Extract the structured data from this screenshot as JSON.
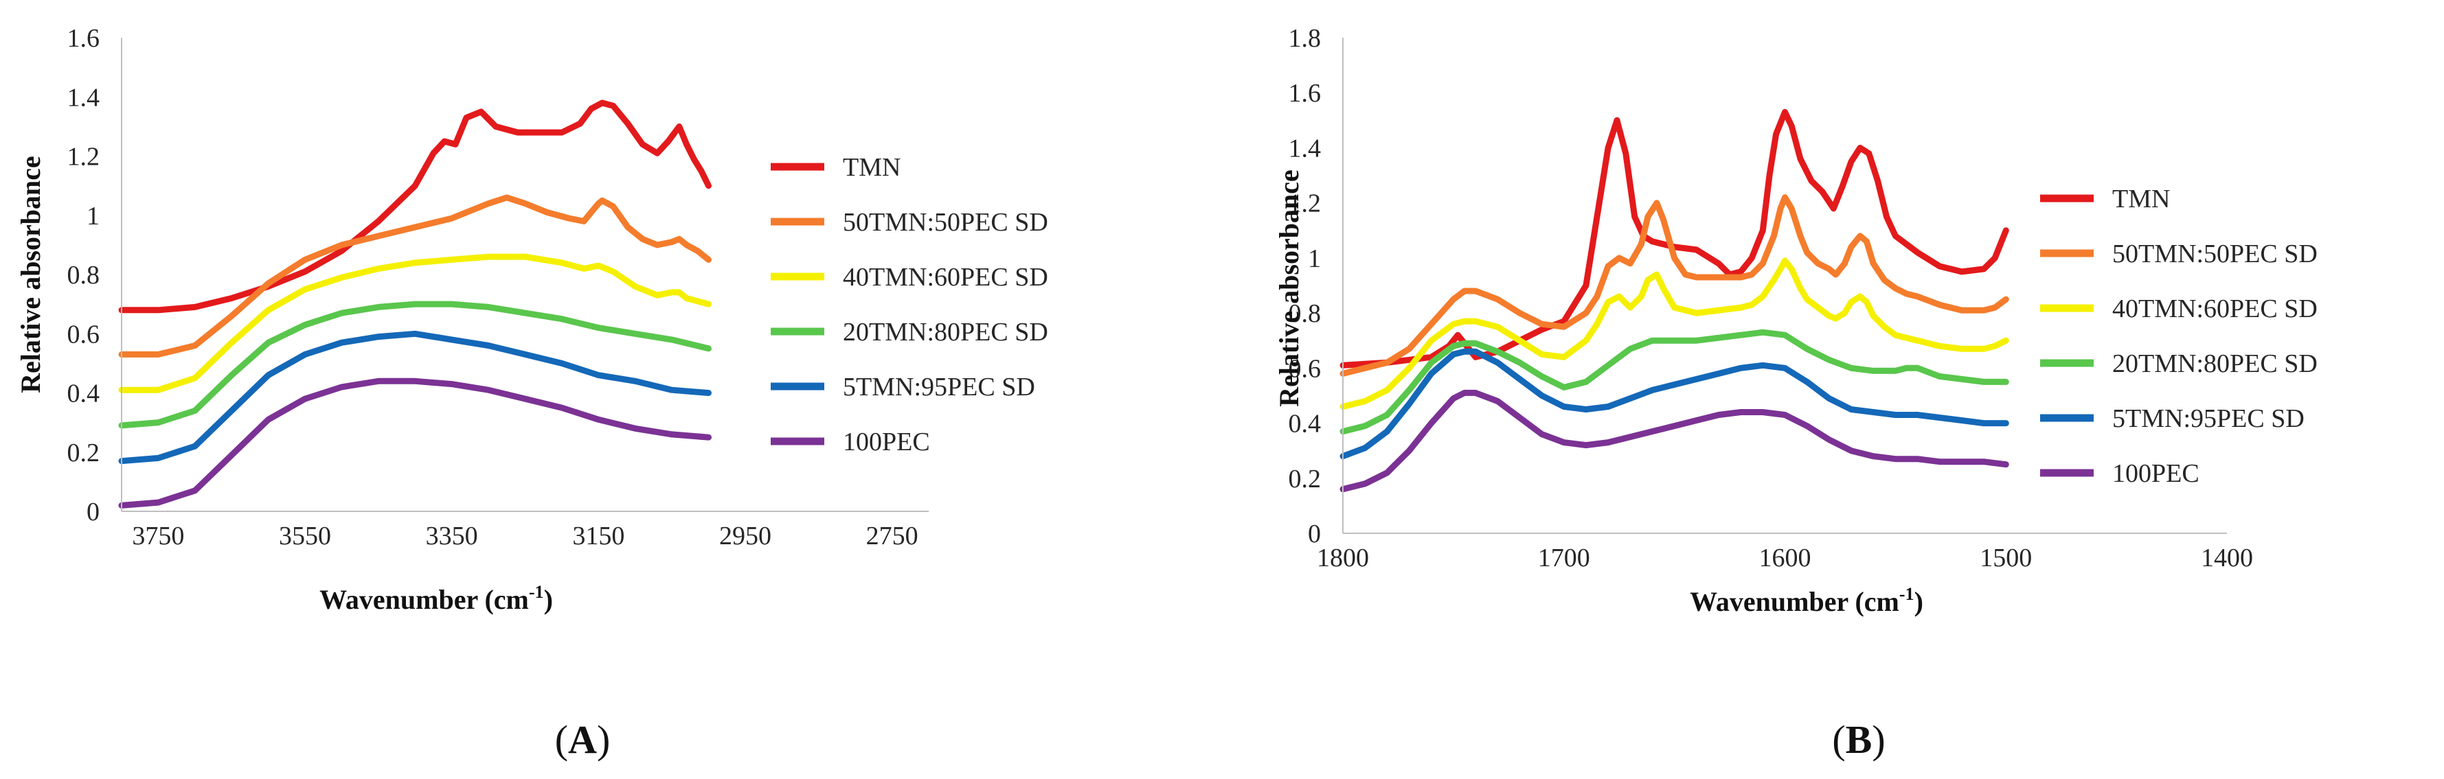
{
  "figure": {
    "panel_labels": [
      {
        "open": "(",
        "letter": "A",
        "close": ")"
      },
      {
        "open": "(",
        "letter": "B",
        "close": ")"
      }
    ]
  },
  "chart_data": [
    {
      "type": "line",
      "panel": "A",
      "title": "",
      "xlabel": "Wavenumber (cm-1)",
      "xlabel_base": "Wavenumber (cm",
      "xlabel_sup": "-1",
      "xlabel_end": ")",
      "ylabel": "Relative absorbance",
      "xlim": [
        3800,
        2700
      ],
      "x_reversed": true,
      "ylim": [
        0,
        1.6
      ],
      "xticks": [
        3750,
        3550,
        3350,
        3150,
        2950,
        2750
      ],
      "xtick_labels": [
        "3750",
        "3550",
        "3350",
        "3150",
        "2950",
        "2750"
      ],
      "yticks": [
        0,
        0.2,
        0.4,
        0.6,
        0.8,
        1,
        1.2,
        1.4,
        1.6
      ],
      "ytick_labels": [
        "0",
        "0.2",
        "0.4",
        "0.6",
        "0.8",
        "1",
        "1.2",
        "1.4",
        "1.6"
      ],
      "grid": false,
      "legend_position": "right",
      "series": [
        {
          "name": "TMN",
          "color": "#e31a1c",
          "x": [
            3800,
            3750,
            3700,
            3650,
            3600,
            3550,
            3500,
            3450,
            3400,
            3375,
            3360,
            3345,
            3330,
            3310,
            3290,
            3260,
            3230,
            3200,
            3175,
            3160,
            3145,
            3130,
            3110,
            3090,
            3070,
            3055,
            3040,
            3030,
            3020,
            3010,
            3000
          ],
          "y": [
            0.68,
            0.68,
            0.69,
            0.72,
            0.76,
            0.81,
            0.88,
            0.98,
            1.1,
            1.21,
            1.25,
            1.24,
            1.33,
            1.35,
            1.3,
            1.28,
            1.28,
            1.28,
            1.31,
            1.36,
            1.38,
            1.37,
            1.31,
            1.24,
            1.21,
            1.25,
            1.3,
            1.24,
            1.19,
            1.15,
            1.1
          ]
        },
        {
          "name": "50TMN:50PEC SD",
          "color": "#f47c2c",
          "x": [
            3800,
            3750,
            3700,
            3650,
            3600,
            3550,
            3500,
            3450,
            3400,
            3350,
            3300,
            3275,
            3250,
            3220,
            3190,
            3170,
            3160,
            3150,
            3145,
            3130,
            3110,
            3090,
            3070,
            3050,
            3040,
            3030,
            3015,
            3000
          ],
          "y": [
            0.53,
            0.53,
            0.56,
            0.66,
            0.77,
            0.85,
            0.9,
            0.93,
            0.96,
            0.99,
            1.04,
            1.06,
            1.04,
            1.01,
            0.99,
            0.98,
            1.01,
            1.04,
            1.05,
            1.03,
            0.96,
            0.92,
            0.9,
            0.91,
            0.92,
            0.9,
            0.88,
            0.85
          ]
        },
        {
          "name": "40TMN:60PEC SD",
          "color": "#f5f000",
          "x": [
            3800,
            3750,
            3700,
            3650,
            3600,
            3550,
            3500,
            3450,
            3400,
            3350,
            3300,
            3250,
            3200,
            3170,
            3150,
            3130,
            3100,
            3070,
            3050,
            3040,
            3030,
            3015,
            3000
          ],
          "y": [
            0.41,
            0.41,
            0.45,
            0.57,
            0.68,
            0.75,
            0.79,
            0.82,
            0.84,
            0.85,
            0.86,
            0.86,
            0.84,
            0.82,
            0.83,
            0.81,
            0.76,
            0.73,
            0.74,
            0.74,
            0.72,
            0.71,
            0.7
          ]
        },
        {
          "name": "20TMN:80PEC SD",
          "color": "#59c64c",
          "x": [
            3800,
            3750,
            3700,
            3650,
            3600,
            3550,
            3500,
            3450,
            3400,
            3350,
            3300,
            3250,
            3200,
            3150,
            3100,
            3050,
            3000
          ],
          "y": [
            0.29,
            0.3,
            0.34,
            0.46,
            0.57,
            0.63,
            0.67,
            0.69,
            0.7,
            0.7,
            0.69,
            0.67,
            0.65,
            0.62,
            0.6,
            0.58,
            0.55
          ]
        },
        {
          "name": "5TMN:95PEC SD",
          "color": "#1468b8",
          "x": [
            3800,
            3750,
            3700,
            3650,
            3600,
            3550,
            3500,
            3450,
            3400,
            3350,
            3300,
            3250,
            3200,
            3150,
            3100,
            3050,
            3000
          ],
          "y": [
            0.17,
            0.18,
            0.22,
            0.34,
            0.46,
            0.53,
            0.57,
            0.59,
            0.6,
            0.58,
            0.56,
            0.53,
            0.5,
            0.46,
            0.44,
            0.41,
            0.4
          ]
        },
        {
          "name": "100PEC",
          "color": "#7b3294",
          "x": [
            3800,
            3750,
            3700,
            3650,
            3600,
            3550,
            3500,
            3450,
            3400,
            3350,
            3300,
            3250,
            3200,
            3150,
            3100,
            3050,
            3000
          ],
          "y": [
            0.02,
            0.03,
            0.07,
            0.19,
            0.31,
            0.38,
            0.42,
            0.44,
            0.44,
            0.43,
            0.41,
            0.38,
            0.35,
            0.31,
            0.28,
            0.26,
            0.25
          ]
        }
      ]
    },
    {
      "type": "line",
      "panel": "B",
      "title": "",
      "xlabel": "Wavenumber (cm-1)",
      "xlabel_base": "Wavenumber (cm",
      "xlabel_sup": "-1",
      "xlabel_end": ")",
      "ylabel": "Relative absorbance",
      "xlim": [
        1800,
        1400
      ],
      "x_reversed": true,
      "ylim": [
        0,
        1.8
      ],
      "xticks": [
        1800,
        1700,
        1600,
        1500,
        1400
      ],
      "xtick_labels": [
        "1800",
        "1700",
        "1600",
        "1500",
        "1400"
      ],
      "yticks": [
        0,
        0.2,
        0.4,
        0.6,
        0.8,
        1,
        1.2,
        1.4,
        1.6,
        1.8
      ],
      "ytick_labels": [
        "0",
        "0.2",
        "0.4",
        "0.6",
        "0.8",
        "1",
        "1.2",
        "1.4",
        "1.6",
        "1.8"
      ],
      "grid": false,
      "legend_position": "right",
      "series": [
        {
          "name": "TMN",
          "color": "#e31a1c",
          "x": [
            1800,
            1780,
            1760,
            1752,
            1748,
            1744,
            1740,
            1730,
            1720,
            1710,
            1700,
            1690,
            1685,
            1680,
            1676,
            1672,
            1668,
            1664,
            1660,
            1655,
            1650,
            1640,
            1630,
            1625,
            1620,
            1615,
            1610,
            1607,
            1604,
            1600,
            1597,
            1593,
            1588,
            1583,
            1578,
            1574,
            1570,
            1566,
            1562,
            1558,
            1554,
            1550,
            1540,
            1530,
            1520,
            1510,
            1505,
            1500
          ],
          "y": [
            0.61,
            0.62,
            0.64,
            0.68,
            0.72,
            0.68,
            0.64,
            0.66,
            0.7,
            0.74,
            0.77,
            0.9,
            1.15,
            1.4,
            1.5,
            1.38,
            1.15,
            1.08,
            1.06,
            1.05,
            1.04,
            1.03,
            0.98,
            0.94,
            0.95,
            1.0,
            1.1,
            1.3,
            1.45,
            1.53,
            1.48,
            1.36,
            1.28,
            1.24,
            1.18,
            1.26,
            1.35,
            1.4,
            1.38,
            1.28,
            1.15,
            1.08,
            1.02,
            0.97,
            0.95,
            0.96,
            1.0,
            1.1
          ]
        },
        {
          "name": "50TMN:50PEC SD",
          "color": "#f47c2c",
          "x": [
            1800,
            1790,
            1780,
            1770,
            1760,
            1750,
            1745,
            1740,
            1730,
            1720,
            1710,
            1700,
            1690,
            1685,
            1680,
            1675,
            1670,
            1665,
            1662,
            1658,
            1655,
            1650,
            1645,
            1640,
            1630,
            1620,
            1615,
            1610,
            1605,
            1602,
            1600,
            1597,
            1593,
            1590,
            1585,
            1580,
            1577,
            1573,
            1570,
            1566,
            1563,
            1560,
            1555,
            1550,
            1545,
            1540,
            1530,
            1520,
            1510,
            1505,
            1500
          ],
          "y": [
            0.58,
            0.6,
            0.62,
            0.67,
            0.76,
            0.85,
            0.88,
            0.88,
            0.85,
            0.8,
            0.76,
            0.75,
            0.8,
            0.86,
            0.97,
            1.0,
            0.98,
            1.05,
            1.15,
            1.2,
            1.14,
            1.0,
            0.94,
            0.93,
            0.93,
            0.93,
            0.94,
            0.98,
            1.08,
            1.18,
            1.22,
            1.18,
            1.08,
            1.02,
            0.98,
            0.96,
            0.94,
            0.98,
            1.04,
            1.08,
            1.06,
            0.98,
            0.92,
            0.89,
            0.87,
            0.86,
            0.83,
            0.81,
            0.81,
            0.82,
            0.85
          ]
        },
        {
          "name": "40TMN:60PEC SD",
          "color": "#f5f000",
          "x": [
            1800,
            1790,
            1780,
            1770,
            1760,
            1750,
            1745,
            1740,
            1730,
            1720,
            1710,
            1700,
            1690,
            1685,
            1680,
            1675,
            1670,
            1665,
            1662,
            1658,
            1655,
            1650,
            1640,
            1630,
            1620,
            1615,
            1610,
            1605,
            1602,
            1600,
            1597,
            1593,
            1590,
            1585,
            1580,
            1577,
            1573,
            1570,
            1566,
            1563,
            1560,
            1555,
            1550,
            1540,
            1530,
            1520,
            1510,
            1505,
            1500
          ],
          "y": [
            0.46,
            0.48,
            0.52,
            0.6,
            0.7,
            0.76,
            0.77,
            0.77,
            0.75,
            0.7,
            0.65,
            0.64,
            0.7,
            0.76,
            0.84,
            0.86,
            0.82,
            0.86,
            0.92,
            0.94,
            0.89,
            0.82,
            0.8,
            0.81,
            0.82,
            0.83,
            0.86,
            0.92,
            0.96,
            0.99,
            0.96,
            0.89,
            0.85,
            0.82,
            0.79,
            0.78,
            0.8,
            0.84,
            0.86,
            0.84,
            0.79,
            0.75,
            0.72,
            0.7,
            0.68,
            0.67,
            0.67,
            0.68,
            0.7
          ]
        },
        {
          "name": "20TMN:80PEC SD",
          "color": "#59c64c",
          "x": [
            1800,
            1790,
            1780,
            1770,
            1760,
            1750,
            1745,
            1740,
            1730,
            1720,
            1710,
            1700,
            1690,
            1680,
            1670,
            1660,
            1650,
            1640,
            1630,
            1620,
            1610,
            1600,
            1590,
            1580,
            1570,
            1560,
            1550,
            1545,
            1540,
            1530,
            1520,
            1510,
            1500
          ],
          "y": [
            0.37,
            0.39,
            0.43,
            0.52,
            0.62,
            0.68,
            0.69,
            0.69,
            0.66,
            0.62,
            0.57,
            0.53,
            0.55,
            0.61,
            0.67,
            0.7,
            0.7,
            0.7,
            0.71,
            0.72,
            0.73,
            0.72,
            0.67,
            0.63,
            0.6,
            0.59,
            0.59,
            0.6,
            0.6,
            0.57,
            0.56,
            0.55,
            0.55
          ]
        },
        {
          "name": "5TMN:95PEC SD",
          "color": "#1468b8",
          "x": [
            1800,
            1790,
            1780,
            1770,
            1760,
            1750,
            1745,
            1740,
            1730,
            1720,
            1710,
            1700,
            1690,
            1680,
            1670,
            1660,
            1650,
            1640,
            1630,
            1620,
            1610,
            1600,
            1590,
            1580,
            1570,
            1560,
            1550,
            1540,
            1530,
            1520,
            1510,
            1500
          ],
          "y": [
            0.28,
            0.31,
            0.37,
            0.47,
            0.58,
            0.65,
            0.66,
            0.66,
            0.62,
            0.56,
            0.5,
            0.46,
            0.45,
            0.46,
            0.49,
            0.52,
            0.54,
            0.56,
            0.58,
            0.6,
            0.61,
            0.6,
            0.55,
            0.49,
            0.45,
            0.44,
            0.43,
            0.43,
            0.42,
            0.41,
            0.4,
            0.4
          ]
        },
        {
          "name": "100PEC",
          "color": "#7b3294",
          "x": [
            1800,
            1790,
            1780,
            1770,
            1760,
            1750,
            1745,
            1740,
            1730,
            1720,
            1710,
            1700,
            1690,
            1680,
            1670,
            1660,
            1650,
            1640,
            1630,
            1620,
            1610,
            1600,
            1590,
            1580,
            1570,
            1560,
            1550,
            1540,
            1530,
            1520,
            1510,
            1500
          ],
          "y": [
            0.16,
            0.18,
            0.22,
            0.3,
            0.4,
            0.49,
            0.51,
            0.51,
            0.48,
            0.42,
            0.36,
            0.33,
            0.32,
            0.33,
            0.35,
            0.37,
            0.39,
            0.41,
            0.43,
            0.44,
            0.44,
            0.43,
            0.39,
            0.34,
            0.3,
            0.28,
            0.27,
            0.27,
            0.26,
            0.26,
            0.26,
            0.25
          ]
        }
      ]
    }
  ]
}
